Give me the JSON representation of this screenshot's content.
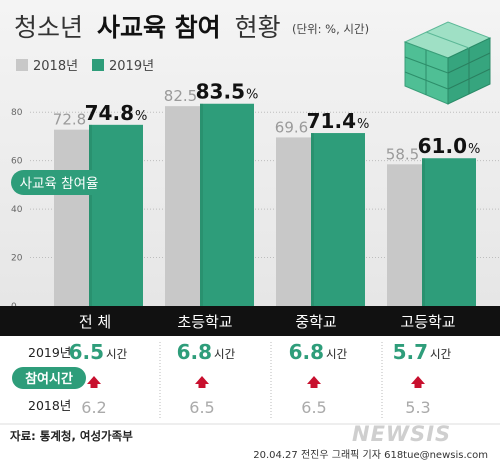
{
  "header": {
    "title_light": "청소년",
    "title_bold": "사교육 참여",
    "title_end": "현황",
    "unit": "(단위: %, 시간)"
  },
  "legend": [
    {
      "label": "2018년",
      "color": "#c8c8c8"
    },
    {
      "label": "2019년",
      "color": "#2e9d7a"
    }
  ],
  "chart_data": {
    "type": "bar",
    "title": "청소년 사교육 참여 현황",
    "ylabel": "사교육 참여율",
    "ylim": [
      0,
      90
    ],
    "yticks": [
      "0",
      "20",
      "40",
      "60",
      "80"
    ],
    "categories": [
      "전 체",
      "초등학교",
      "중학교",
      "고등학교"
    ],
    "series": [
      {
        "name": "2018년",
        "values": [
          72.8,
          82.5,
          69.6,
          58.5
        ],
        "labels": [
          "72.8",
          "82.5",
          "69.6",
          "58.5"
        ]
      },
      {
        "name": "2019년",
        "values": [
          74.8,
          83.5,
          71.4,
          61.0
        ],
        "labels": [
          "74.8",
          "83.5",
          "71.4",
          "61.0"
        ]
      }
    ],
    "value_suffix": "%",
    "grid": true
  },
  "hours": {
    "badge": "참여시간",
    "label_2019": "2019년",
    "label_2018": "2018년",
    "unit": "시간",
    "values_2019": [
      "6.5",
      "6.8",
      "6.8",
      "5.7"
    ],
    "values_2018": [
      "6.2",
      "6.5",
      "6.5",
      "5.3"
    ]
  },
  "footer": {
    "source": "자료: 통계청, 여성가족부",
    "credit": "20.04.27 전진우 그래픽 기자 618tue@newsis.com",
    "logo": "NEWSIS"
  },
  "colors": {
    "accent": "#2e9d7a",
    "accent_dark": "#1f7a5d",
    "gray_bar": "#c8c8c8",
    "band": "#111111",
    "arrow": "#c8102e",
    "bg_top": "#ececec"
  }
}
